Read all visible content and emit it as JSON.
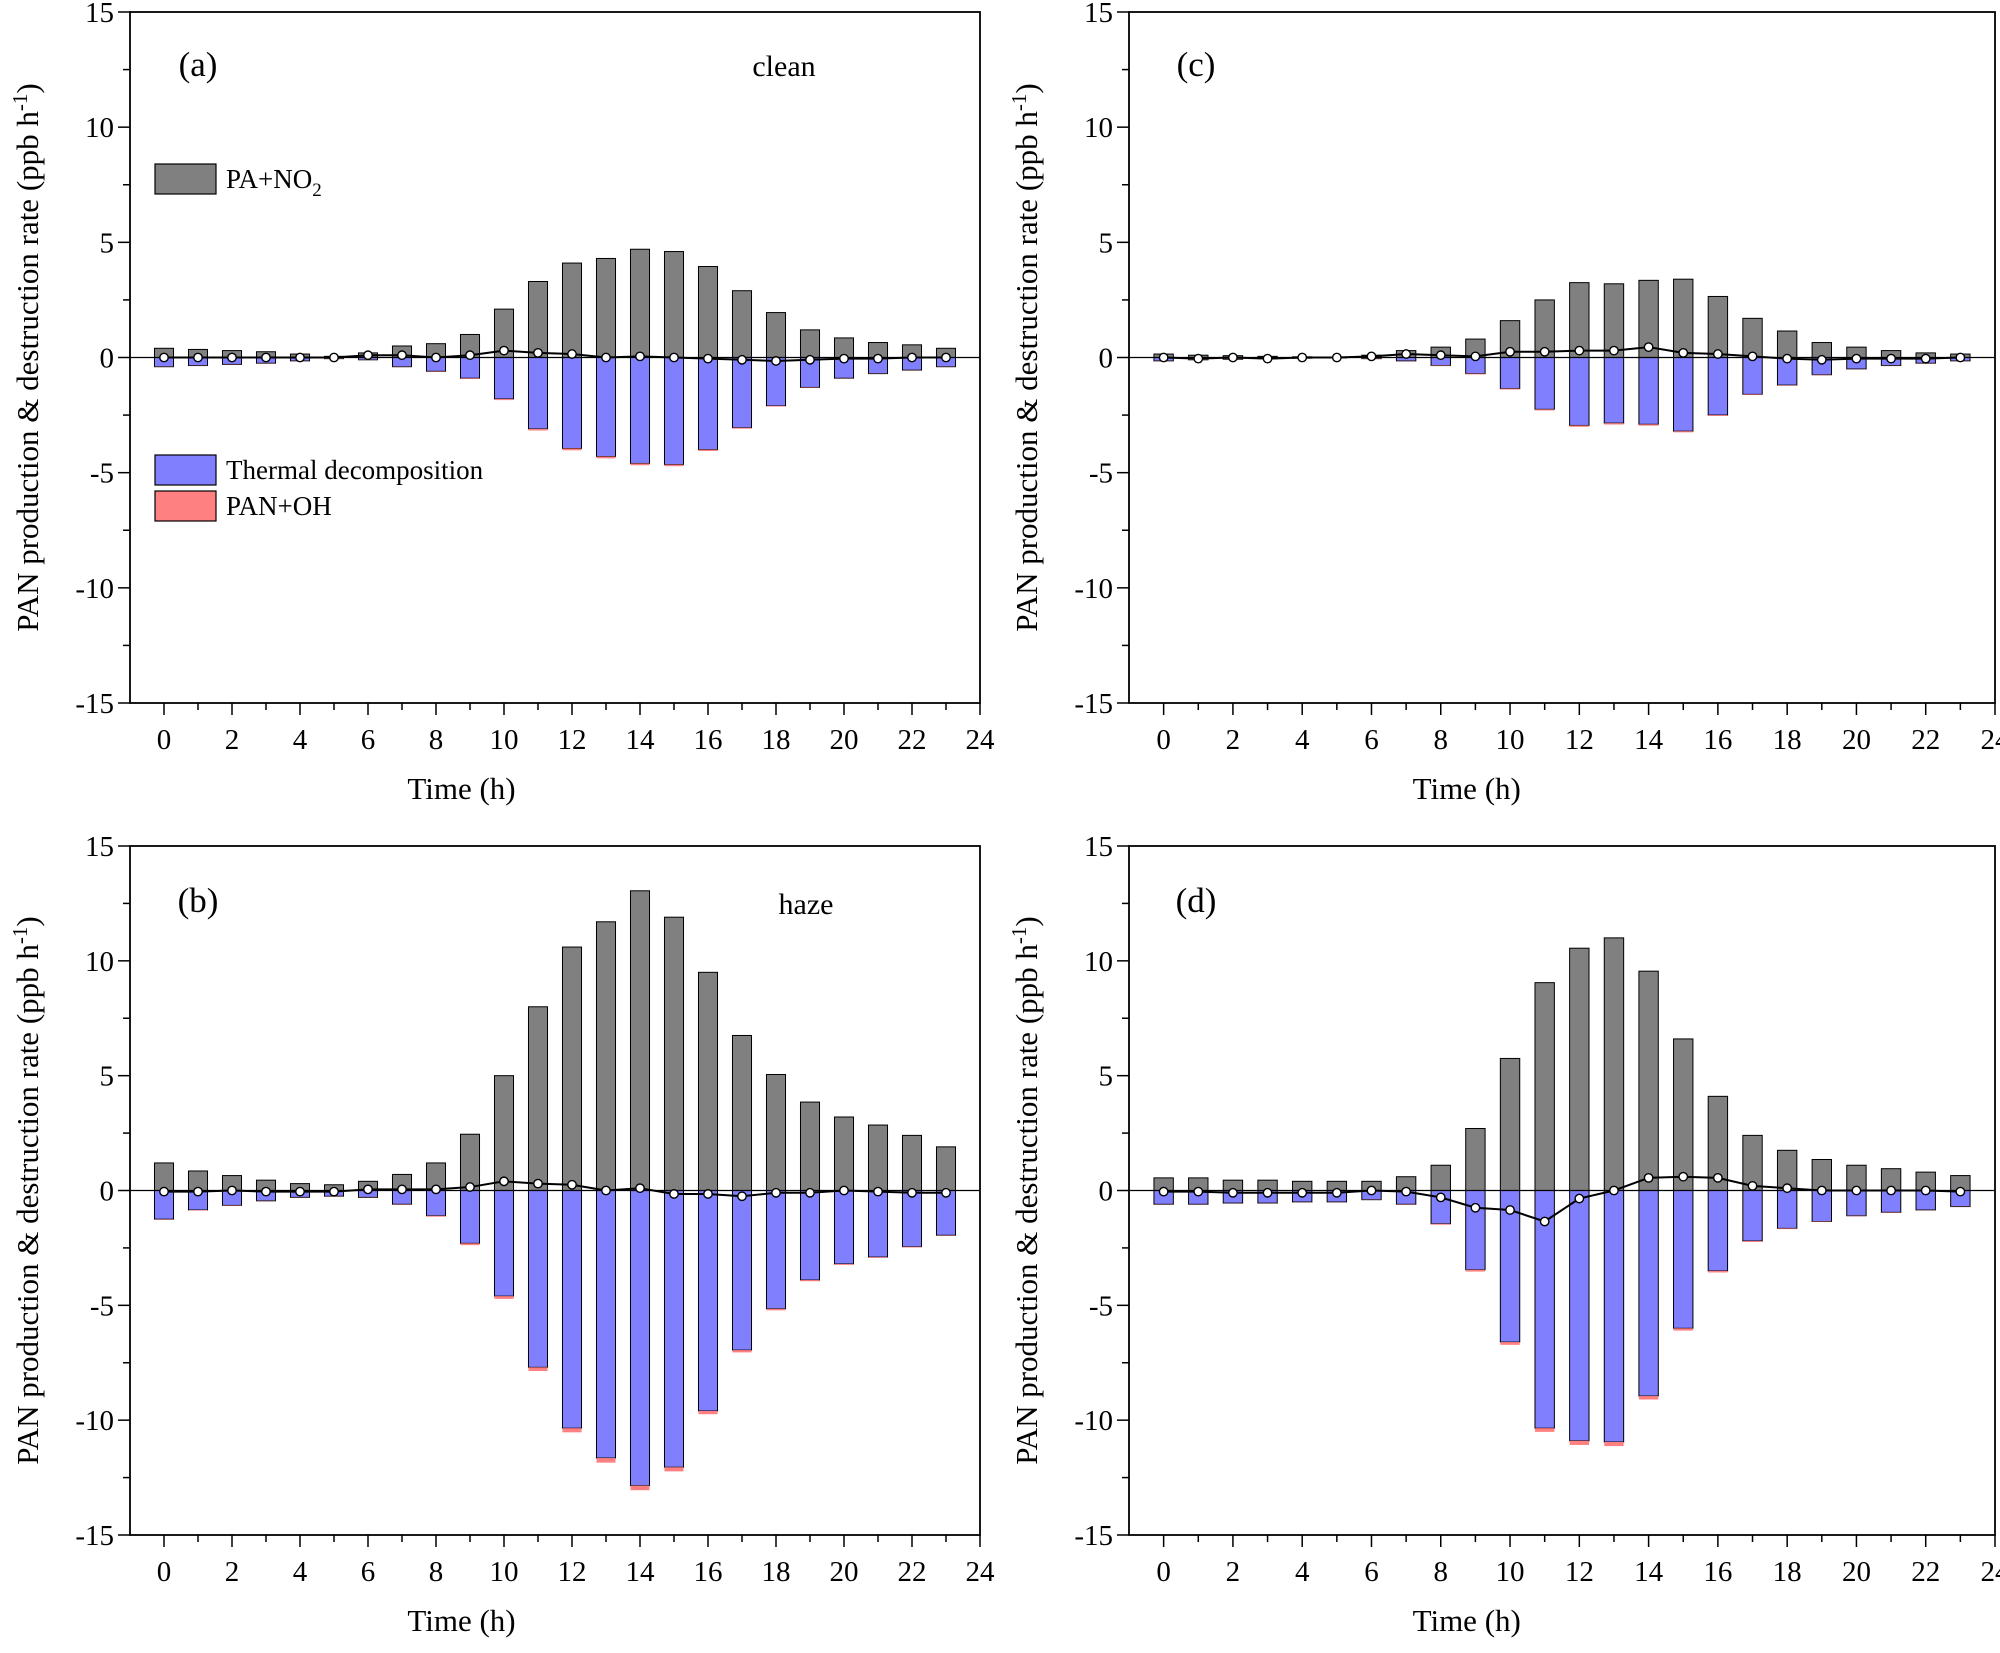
{
  "figure": {
    "colors": {
      "production": "#808080",
      "thermal": "#8080ff",
      "pan_oh": "#ff8080",
      "net_line": "#000000",
      "marker_fill": "#ffffff"
    }
  },
  "legend": {
    "production": "PA+NO",
    "production_sub": "2",
    "thermal": "Thermal decomposition",
    "pan_oh": "PAN+OH"
  },
  "chart_data": [
    {
      "type": "bar",
      "panel": "(a)",
      "condition_label": "clean",
      "xlabel": "Time (h)",
      "ylabel": "PAN production & destruction rate (ppb h",
      "ylabel_sup": "-1",
      "ylabel_close": ")",
      "xlim": [
        -1,
        24
      ],
      "ylim": [
        -15,
        15
      ],
      "xticks": [
        0,
        2,
        4,
        6,
        8,
        10,
        12,
        14,
        16,
        18,
        20,
        22,
        24
      ],
      "yticks": [
        -15,
        -10,
        -5,
        0,
        5,
        10,
        15
      ],
      "x": [
        0,
        1,
        2,
        3,
        4,
        5,
        6,
        7,
        8,
        9,
        10,
        11,
        12,
        13,
        14,
        15,
        16,
        17,
        18,
        19,
        20,
        21,
        22,
        23
      ],
      "series": [
        {
          "name": "PA+NO2",
          "values": [
            0.4,
            0.35,
            0.3,
            0.25,
            0.15,
            0.05,
            0.2,
            0.5,
            0.6,
            1.0,
            2.1,
            3.3,
            4.1,
            4.3,
            4.7,
            4.6,
            3.95,
            2.9,
            1.95,
            1.2,
            0.85,
            0.65,
            0.55,
            0.4
          ]
        },
        {
          "name": "Thermal decomposition",
          "values": [
            -0.4,
            -0.35,
            -0.3,
            -0.25,
            -0.15,
            -0.05,
            -0.1,
            -0.4,
            -0.6,
            -0.9,
            -1.8,
            -3.1,
            -3.95,
            -4.3,
            -4.6,
            -4.65,
            -4.0,
            -3.05,
            -2.1,
            -1.3,
            -0.9,
            -0.7,
            -0.55,
            -0.4
          ]
        },
        {
          "name": "PAN+OH",
          "values": [
            -0.01,
            -0.01,
            -0.01,
            -0.01,
            -0.01,
            -0.01,
            -0.01,
            -0.01,
            -0.02,
            -0.03,
            -0.05,
            -0.07,
            -0.08,
            -0.08,
            -0.08,
            -0.07,
            -0.06,
            -0.04,
            -0.03,
            -0.02,
            -0.01,
            -0.01,
            -0.01,
            -0.01
          ]
        },
        {
          "name": "Net",
          "values": [
            0.0,
            0.0,
            0.0,
            0.0,
            0.0,
            0.0,
            0.1,
            0.1,
            0.0,
            0.1,
            0.3,
            0.2,
            0.15,
            0.0,
            0.05,
            0.0,
            -0.05,
            -0.1,
            -0.15,
            -0.1,
            -0.05,
            -0.05,
            0.0,
            0.0
          ]
        }
      ]
    },
    {
      "type": "bar",
      "panel": "(b)",
      "condition_label": "haze",
      "xlabel": "Time (h)",
      "ylabel": "PAN production & destruction rate (ppb h",
      "ylabel_sup": "-1",
      "ylabel_close": ")",
      "xlim": [
        -1,
        24
      ],
      "ylim": [
        -15,
        15
      ],
      "xticks": [
        0,
        2,
        4,
        6,
        8,
        10,
        12,
        14,
        16,
        18,
        20,
        22,
        24
      ],
      "yticks": [
        -15,
        -10,
        -5,
        0,
        5,
        10,
        15
      ],
      "x": [
        0,
        1,
        2,
        3,
        4,
        5,
        6,
        7,
        8,
        9,
        10,
        11,
        12,
        13,
        14,
        15,
        16,
        17,
        18,
        19,
        20,
        21,
        22,
        23
      ],
      "series": [
        {
          "name": "PA+NO2",
          "values": [
            1.2,
            0.85,
            0.65,
            0.45,
            0.3,
            0.25,
            0.4,
            0.7,
            1.2,
            2.45,
            5.0,
            8.0,
            10.6,
            11.7,
            13.05,
            11.9,
            9.5,
            6.75,
            5.05,
            3.85,
            3.2,
            2.85,
            2.4,
            1.9
          ]
        },
        {
          "name": "Thermal decomposition",
          "values": [
            -1.25,
            -0.85,
            -0.65,
            -0.45,
            -0.3,
            -0.25,
            -0.3,
            -0.6,
            -1.1,
            -2.3,
            -4.6,
            -7.7,
            -10.35,
            -11.65,
            -12.85,
            -12.05,
            -9.6,
            -6.95,
            -5.15,
            -3.9,
            -3.2,
            -2.9,
            -2.45,
            -1.95
          ]
        },
        {
          "name": "PAN+OH",
          "values": [
            -0.02,
            -0.02,
            -0.02,
            -0.01,
            -0.01,
            -0.01,
            -0.01,
            -0.02,
            -0.04,
            -0.08,
            -0.12,
            -0.16,
            -0.18,
            -0.2,
            -0.2,
            -0.18,
            -0.14,
            -0.1,
            -0.07,
            -0.05,
            -0.04,
            -0.03,
            -0.03,
            -0.02
          ]
        },
        {
          "name": "Net",
          "values": [
            -0.05,
            -0.05,
            0.0,
            -0.05,
            -0.05,
            -0.05,
            0.05,
            0.05,
            0.05,
            0.15,
            0.4,
            0.3,
            0.25,
            0.0,
            0.1,
            -0.15,
            -0.15,
            -0.25,
            -0.1,
            -0.1,
            0.0,
            -0.05,
            -0.1,
            -0.1
          ]
        }
      ]
    },
    {
      "type": "bar",
      "panel": "(c)",
      "condition_label": "",
      "xlabel": "Time (h)",
      "ylabel": "PAN production & destruction rate (ppb h",
      "ylabel_sup": "-1",
      "ylabel_close": ")",
      "xlim": [
        -1,
        24
      ],
      "ylim": [
        -15,
        15
      ],
      "xticks": [
        0,
        2,
        4,
        6,
        8,
        10,
        12,
        14,
        16,
        18,
        20,
        22,
        24
      ],
      "yticks": [
        -15,
        -10,
        -5,
        0,
        5,
        10,
        15
      ],
      "x": [
        0,
        1,
        2,
        3,
        4,
        5,
        6,
        7,
        8,
        9,
        10,
        11,
        12,
        13,
        14,
        15,
        16,
        17,
        18,
        19,
        20,
        21,
        22,
        23
      ],
      "series": [
        {
          "name": "PA+NO2",
          "values": [
            0.15,
            0.1,
            0.08,
            0.05,
            0.03,
            0.02,
            0.1,
            0.3,
            0.45,
            0.8,
            1.6,
            2.5,
            3.25,
            3.2,
            3.35,
            3.4,
            2.65,
            1.7,
            1.15,
            0.65,
            0.45,
            0.3,
            0.2,
            0.15
          ]
        },
        {
          "name": "Thermal decomposition",
          "values": [
            -0.15,
            -0.1,
            -0.08,
            -0.05,
            -0.03,
            -0.02,
            -0.05,
            -0.15,
            -0.35,
            -0.7,
            -1.35,
            -2.25,
            -2.95,
            -2.85,
            -2.9,
            -3.2,
            -2.5,
            -1.6,
            -1.2,
            -0.75,
            -0.5,
            -0.35,
            -0.25,
            -0.15
          ]
        },
        {
          "name": "PAN+OH",
          "values": [
            -0.01,
            -0.01,
            -0.01,
            -0.01,
            -0.01,
            -0.01,
            -0.01,
            -0.01,
            -0.02,
            -0.03,
            -0.04,
            -0.05,
            -0.06,
            -0.06,
            -0.06,
            -0.05,
            -0.04,
            -0.03,
            -0.02,
            -0.02,
            -0.01,
            -0.01,
            -0.01,
            -0.01
          ]
        },
        {
          "name": "Net",
          "values": [
            0.0,
            -0.05,
            0.0,
            -0.05,
            0.0,
            0.0,
            0.05,
            0.15,
            0.1,
            0.05,
            0.25,
            0.25,
            0.3,
            0.3,
            0.45,
            0.2,
            0.15,
            0.05,
            -0.05,
            -0.1,
            -0.05,
            -0.05,
            -0.05,
            0.0
          ]
        }
      ]
    },
    {
      "type": "bar",
      "panel": "(d)",
      "condition_label": "",
      "xlabel": "Time (h)",
      "ylabel": "PAN production & destruction rate (ppb h",
      "ylabel_sup": "-1",
      "ylabel_close": ")",
      "xlim": [
        -1,
        24
      ],
      "ylim": [
        -15,
        15
      ],
      "xticks": [
        0,
        2,
        4,
        6,
        8,
        10,
        12,
        14,
        16,
        18,
        20,
        22,
        24
      ],
      "yticks": [
        -15,
        -10,
        -5,
        0,
        5,
        10,
        15
      ],
      "x": [
        0,
        1,
        2,
        3,
        4,
        5,
        6,
        7,
        8,
        9,
        10,
        11,
        12,
        13,
        14,
        15,
        16,
        17,
        18,
        19,
        20,
        21,
        22,
        23
      ],
      "series": [
        {
          "name": "PA+NO2",
          "values": [
            0.55,
            0.55,
            0.45,
            0.45,
            0.4,
            0.4,
            0.4,
            0.6,
            1.1,
            2.7,
            5.75,
            9.05,
            10.55,
            11.0,
            9.55,
            6.6,
            4.1,
            2.4,
            1.75,
            1.35,
            1.1,
            0.95,
            0.8,
            0.65
          ]
        },
        {
          "name": "Thermal decomposition",
          "values": [
            -0.6,
            -0.6,
            -0.55,
            -0.55,
            -0.5,
            -0.5,
            -0.4,
            -0.6,
            -1.45,
            -3.45,
            -6.6,
            -10.35,
            -10.9,
            -10.95,
            -8.95,
            -6.0,
            -3.5,
            -2.2,
            -1.65,
            -1.35,
            -1.1,
            -0.95,
            -0.85,
            -0.7
          ]
        },
        {
          "name": "PAN+OH",
          "values": [
            -0.01,
            -0.01,
            -0.01,
            -0.01,
            -0.01,
            -0.01,
            -0.01,
            -0.02,
            -0.04,
            -0.08,
            -0.12,
            -0.16,
            -0.18,
            -0.18,
            -0.15,
            -0.1,
            -0.07,
            -0.04,
            -0.03,
            -0.02,
            -0.02,
            -0.02,
            -0.01,
            -0.01
          ]
        },
        {
          "name": "Net",
          "values": [
            -0.05,
            -0.05,
            -0.1,
            -0.1,
            -0.1,
            -0.1,
            0.0,
            -0.05,
            -0.3,
            -0.75,
            -0.85,
            -1.35,
            -0.35,
            0.0,
            0.55,
            0.6,
            0.55,
            0.2,
            0.1,
            0.0,
            0.0,
            0.0,
            0.0,
            -0.05
          ]
        }
      ]
    }
  ]
}
